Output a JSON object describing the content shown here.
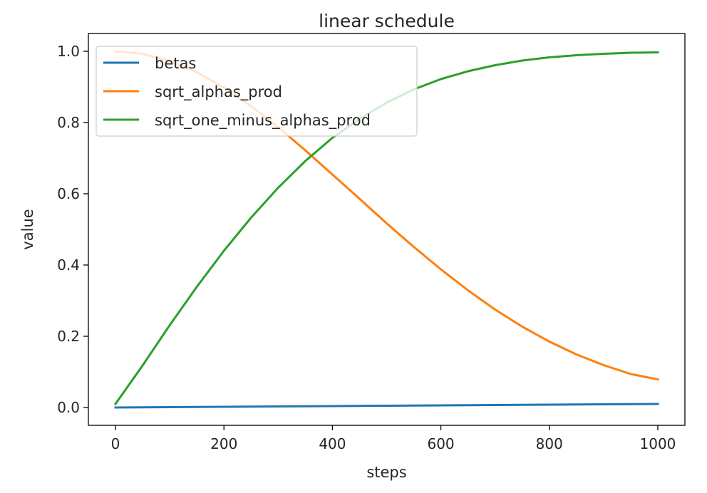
{
  "chart_data": {
    "type": "line",
    "title": "linear schedule",
    "xlabel": "steps",
    "ylabel": "value",
    "xlim": [
      -50,
      1050
    ],
    "ylim": [
      -0.05,
      1.05
    ],
    "xticks": [
      0,
      200,
      400,
      600,
      800,
      1000
    ],
    "xtick_labels": [
      "0",
      "200",
      "400",
      "600",
      "800",
      "1000"
    ],
    "yticks": [
      0.0,
      0.2,
      0.4,
      0.6,
      0.8,
      1.0
    ],
    "ytick_labels": [
      "0.0",
      "0.2",
      "0.4",
      "0.6",
      "0.8",
      "1.0"
    ],
    "grid": false,
    "legend_position": "upper-left",
    "x": [
      0,
      50,
      100,
      150,
      200,
      250,
      300,
      350,
      400,
      450,
      500,
      550,
      600,
      650,
      700,
      750,
      800,
      850,
      900,
      950,
      1000
    ],
    "series": [
      {
        "name": "betas",
        "color": "#1f77b4",
        "values": [
          0.0001,
          0.0006,
          0.0011,
          0.0016,
          0.0021,
          0.0026,
          0.0031,
          0.0036,
          0.0041,
          0.0046,
          0.0051,
          0.0055,
          0.006,
          0.0065,
          0.007,
          0.0075,
          0.008,
          0.0085,
          0.009,
          0.0095,
          0.01
        ]
      },
      {
        "name": "sqrt_alphas_prod",
        "color": "#ff7f0e",
        "values": [
          1.0,
          0.993,
          0.973,
          0.941,
          0.898,
          0.846,
          0.787,
          0.722,
          0.654,
          0.586,
          0.517,
          0.451,
          0.388,
          0.329,
          0.275,
          0.227,
          0.185,
          0.149,
          0.119,
          0.094,
          0.079
        ]
      },
      {
        "name": "sqrt_one_minus_alphas_prod",
        "color": "#2ca02c",
        "values": [
          0.01,
          0.118,
          0.231,
          0.339,
          0.44,
          0.533,
          0.617,
          0.692,
          0.757,
          0.81,
          0.856,
          0.893,
          0.922,
          0.944,
          0.961,
          0.974,
          0.983,
          0.989,
          0.993,
          0.996,
          0.997
        ]
      }
    ]
  }
}
